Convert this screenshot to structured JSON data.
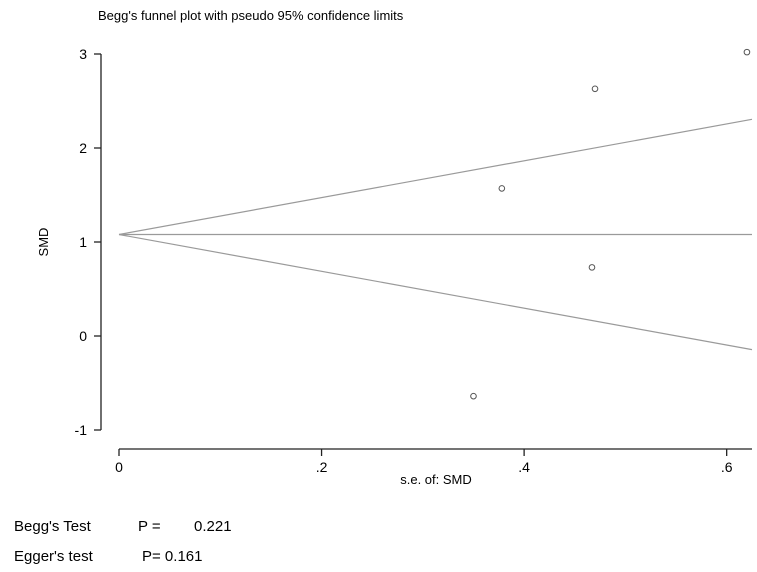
{
  "chart_data": {
    "type": "scatter",
    "title": "Begg's funnel plot with pseudo 95% confidence limits",
    "xlabel": "s.e. of: SMD",
    "ylabel": "SMD",
    "xlim": [
      0,
      0.625
    ],
    "ylim": [
      -1,
      3
    ],
    "xticks": [
      0,
      0.2,
      0.4,
      0.6
    ],
    "xtick_labels": [
      "0",
      ".2",
      ".4",
      ".6"
    ],
    "yticks": [
      -1,
      0,
      1,
      2,
      3
    ],
    "ytick_labels": [
      "-1",
      "0",
      "1",
      "2",
      "3"
    ],
    "grid": false,
    "points": [
      {
        "x": 0.35,
        "y": -0.64
      },
      {
        "x": 0.378,
        "y": 1.57
      },
      {
        "x": 0.467,
        "y": 0.73
      },
      {
        "x": 0.47,
        "y": 2.63
      },
      {
        "x": 0.62,
        "y": 3.02
      }
    ],
    "pooled_effect": 1.08,
    "limit_multiplier": 1.96
  },
  "stats": {
    "begg": {
      "name": "Begg's Test",
      "p_label": "P =",
      "p_value": "0.221"
    },
    "egger": {
      "name": "Egger's test",
      "p_label": "P= 0.161"
    }
  }
}
